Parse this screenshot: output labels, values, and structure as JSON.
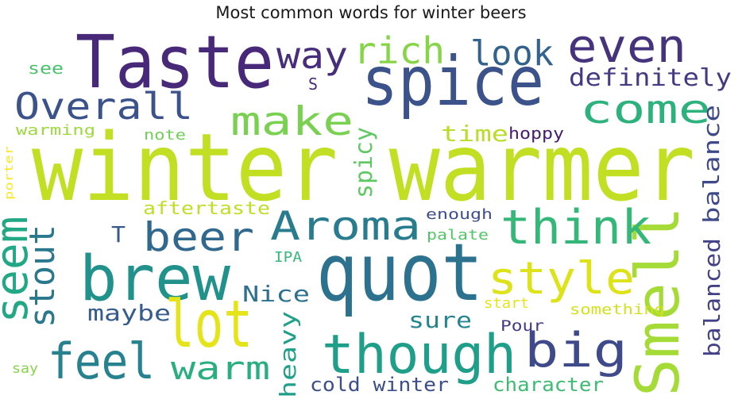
{
  "chart_data": {
    "type": "wordcloud",
    "title": "Most common words for winter beers",
    "words": [
      {
        "text": "winter warmer",
        "weight": 100,
        "color": "#c2df23"
      },
      {
        "text": "quot",
        "weight": 82,
        "color": "#2c728e"
      },
      {
        "text": "Taste",
        "weight": 78,
        "color": "#482878"
      },
      {
        "text": "spice",
        "weight": 74,
        "color": "#3b528b"
      },
      {
        "text": "Smell",
        "weight": 62,
        "color": "#a5db36"
      },
      {
        "text": "brew",
        "weight": 62,
        "color": "#21918c"
      },
      {
        "text": "lot",
        "weight": 62,
        "color": "#e5e419"
      },
      {
        "text": "though",
        "weight": 58,
        "color": "#1f9e89"
      },
      {
        "text": "even",
        "weight": 54,
        "color": "#46337e"
      },
      {
        "text": "feel",
        "weight": 54,
        "color": "#26828e"
      },
      {
        "text": "big",
        "weight": 52,
        "color": "#3e4a89"
      },
      {
        "text": "think",
        "weight": 50,
        "color": "#35b779"
      },
      {
        "text": "seem",
        "weight": 48,
        "color": "#22a884"
      },
      {
        "text": "style",
        "weight": 47,
        "color": "#dde318"
      },
      {
        "text": "Aroma",
        "weight": 45,
        "color": "#287c8e"
      },
      {
        "text": "beer",
        "weight": 45,
        "color": "#31688e"
      },
      {
        "text": "come",
        "weight": 43,
        "color": "#2db27d"
      },
      {
        "text": "make",
        "weight": 43,
        "color": "#7ad151"
      },
      {
        "text": "way",
        "weight": 42,
        "color": "#472d7b"
      },
      {
        "text": "rich",
        "weight": 42,
        "color": "#86d549"
      },
      {
        "text": "look",
        "weight": 41,
        "color": "#33638d"
      },
      {
        "text": "Overall",
        "weight": 40,
        "color": "#3b528b"
      },
      {
        "text": "stout",
        "weight": 37,
        "color": "#2a788e"
      },
      {
        "text": "warm",
        "weight": 35,
        "color": "#29af7f"
      },
      {
        "text": "definitely",
        "weight": 28,
        "color": "#443a83"
      },
      {
        "text": "spicy",
        "weight": 26,
        "color": "#5ec962"
      },
      {
        "text": "balance",
        "weight": 25,
        "color": "#3e4989"
      },
      {
        "text": "balanced",
        "weight": 25,
        "color": "#424086"
      },
      {
        "text": "heavy",
        "weight": 25,
        "color": "#1fa088"
      },
      {
        "text": "time",
        "weight": 24,
        "color": "#b8de29"
      },
      {
        "text": "Nice",
        "weight": 24,
        "color": "#2c718e"
      },
      {
        "text": "maybe",
        "weight": 24,
        "color": "#365c8d"
      },
      {
        "text": "sure",
        "weight": 24,
        "color": "#25858e"
      },
      {
        "text": "T",
        "weight": 24,
        "color": "#38598c"
      },
      {
        "text": "cold winter",
        "weight": 22,
        "color": "#3c4f8a"
      },
      {
        "text": "character",
        "weight": 22,
        "color": "#3fbc73"
      },
      {
        "text": "aftertaste",
        "weight": 20,
        "color": "#bddf26"
      },
      {
        "text": "hoppy",
        "weight": 18,
        "color": "#481b6d"
      },
      {
        "text": "S",
        "weight": 18,
        "color": "#472c7a"
      },
      {
        "text": "enough",
        "weight": 16,
        "color": "#3d4d8a"
      },
      {
        "text": "palate",
        "weight": 15,
        "color": "#52c569"
      },
      {
        "text": "IPA",
        "weight": 15,
        "color": "#37b878"
      },
      {
        "text": "Pour",
        "weight": 16,
        "color": "#443983"
      },
      {
        "text": "something",
        "weight": 15,
        "color": "#d2e21b"
      },
      {
        "text": "start",
        "weight": 14,
        "color": "#e7e419"
      },
      {
        "text": "warming",
        "weight": 16,
        "color": "#9bd93c"
      },
      {
        "text": "note",
        "weight": 15,
        "color": "#70cf57"
      },
      {
        "text": "see",
        "weight": 16,
        "color": "#4ac16d"
      },
      {
        "text": "say",
        "weight": 14,
        "color": "#86d549"
      },
      {
        "text": "porter",
        "weight": 14,
        "color": "#fde725"
      }
    ]
  }
}
